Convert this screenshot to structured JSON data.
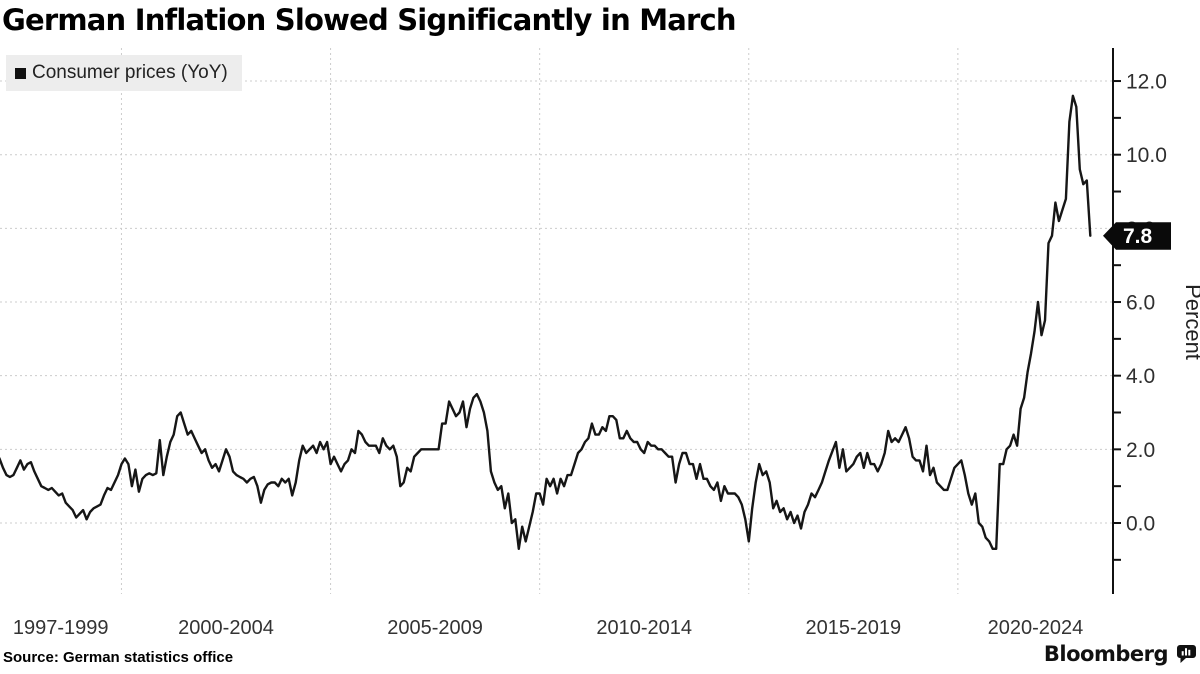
{
  "header": {
    "title": "German Inflation Slowed Significantly in March"
  },
  "chart": {
    "legend_label": "Consumer prices (YoY)",
    "y_axis_title": "Percent",
    "x_labels": [
      "1997-1999",
      "2000-2004",
      "2005-2009",
      "2010-2014",
      "2015-2019",
      "2020-2024"
    ],
    "y_tick_labels": [
      "0.0",
      "2.0",
      "4.0",
      "6.0",
      "8.0",
      "10.0",
      "12.0"
    ],
    "last_value_label": "7.8"
  },
  "chart_data": {
    "type": "line",
    "title": "German Inflation Slowed Significantly in March",
    "series_name": "Consumer prices (YoY)",
    "ylabel": "Percent",
    "frequency": "monthly",
    "start_year": 1997,
    "start_month": 1,
    "end_label": "2023-03",
    "ylim": [
      -1.9,
      13.0
    ],
    "y_ticks": [
      0,
      2,
      4,
      6,
      8,
      10,
      12
    ],
    "minor_tick_step": 1,
    "x_gridline_years": [
      2000,
      2005,
      2010,
      2015,
      2020
    ],
    "grid": "dashed",
    "legend_position": "top-left",
    "line_color": "#161616",
    "last_value": 7.8,
    "values": [
      1.9,
      1.75,
      1.5,
      1.3,
      1.25,
      1.3,
      1.5,
      1.7,
      1.45,
      1.6,
      1.65,
      1.4,
      1.2,
      1.0,
      0.95,
      0.9,
      0.95,
      0.85,
      0.75,
      0.8,
      0.55,
      0.45,
      0.35,
      0.15,
      0.25,
      0.35,
      0.1,
      0.3,
      0.4,
      0.45,
      0.5,
      0.75,
      0.95,
      0.9,
      1.1,
      1.3,
      1.6,
      1.75,
      1.6,
      1.0,
      1.45,
      0.85,
      1.2,
      1.3,
      1.35,
      1.3,
      1.35,
      2.25,
      1.3,
      1.8,
      2.2,
      2.4,
      2.9,
      3.0,
      2.7,
      2.4,
      2.5,
      2.3,
      2.1,
      1.9,
      2.0,
      1.7,
      1.5,
      1.6,
      1.4,
      1.7,
      2.0,
      1.8,
      1.4,
      1.3,
      1.25,
      1.2,
      1.1,
      1.2,
      1.25,
      1.0,
      0.55,
      0.9,
      1.05,
      1.1,
      1.1,
      1.0,
      1.2,
      1.1,
      1.2,
      0.75,
      1.1,
      1.7,
      2.1,
      1.9,
      2.0,
      2.1,
      1.9,
      2.2,
      2.0,
      2.2,
      1.6,
      1.8,
      1.6,
      1.4,
      1.6,
      1.7,
      2.0,
      1.9,
      2.5,
      2.4,
      2.2,
      2.1,
      2.1,
      2.1,
      1.9,
      2.3,
      2.1,
      2.0,
      2.1,
      1.8,
      1.0,
      1.1,
      1.5,
      1.4,
      1.8,
      1.9,
      2.0,
      2.0,
      2.0,
      2.0,
      2.0,
      2.0,
      2.7,
      2.7,
      3.3,
      3.1,
      2.9,
      3.0,
      3.3,
      2.6,
      3.1,
      3.4,
      3.5,
      3.3,
      3.0,
      2.5,
      1.4,
      1.1,
      0.9,
      1.0,
      0.4,
      0.8,
      0.0,
      0.1,
      -0.7,
      -0.1,
      -0.5,
      -0.1,
      0.3,
      0.8,
      0.8,
      0.5,
      1.2,
      1.0,
      1.2,
      0.8,
      1.2,
      1.0,
      1.3,
      1.3,
      1.6,
      1.9,
      2.0,
      2.2,
      2.3,
      2.7,
      2.4,
      2.4,
      2.6,
      2.5,
      2.9,
      2.9,
      2.8,
      2.3,
      2.3,
      2.5,
      2.3,
      2.2,
      2.2,
      2.0,
      1.9,
      2.2,
      2.1,
      2.1,
      2.0,
      2.0,
      1.9,
      1.8,
      1.8,
      1.1,
      1.6,
      1.9,
      1.9,
      1.6,
      1.6,
      1.2,
      1.6,
      1.2,
      1.2,
      1.0,
      0.9,
      1.1,
      0.6,
      1.0,
      0.8,
      0.8,
      0.8,
      0.7,
      0.5,
      0.1,
      -0.5,
      0.4,
      1.1,
      1.6,
      1.3,
      1.4,
      1.1,
      0.4,
      0.6,
      0.3,
      0.4,
      0.1,
      0.3,
      0.0,
      0.2,
      -0.15,
      0.3,
      0.5,
      0.8,
      0.7,
      0.9,
      1.1,
      1.4,
      1.7,
      1.95,
      2.2,
      1.5,
      2.0,
      1.4,
      1.5,
      1.6,
      1.8,
      1.9,
      1.5,
      1.9,
      1.6,
      1.6,
      1.4,
      1.6,
      1.9,
      2.5,
      2.2,
      2.3,
      2.2,
      2.4,
      2.6,
      2.3,
      1.8,
      1.7,
      1.7,
      1.4,
      2.1,
      1.3,
      1.5,
      1.1,
      1.0,
      0.9,
      0.9,
      1.2,
      1.5,
      1.6,
      1.7,
      1.3,
      0.8,
      0.5,
      0.8,
      0.0,
      -0.1,
      -0.4,
      -0.5,
      -0.7,
      -0.7,
      1.6,
      1.6,
      2.0,
      2.1,
      2.4,
      2.1,
      3.1,
      3.4,
      4.1,
      4.6,
      5.2,
      6.0,
      5.1,
      5.5,
      7.6,
      7.8,
      8.7,
      8.2,
      8.5,
      8.8,
      10.9,
      11.6,
      11.3,
      9.6,
      9.2,
      9.3,
      7.8
    ]
  },
  "footer": {
    "source": "Source: German statistics office",
    "brand": "Bloomberg"
  }
}
